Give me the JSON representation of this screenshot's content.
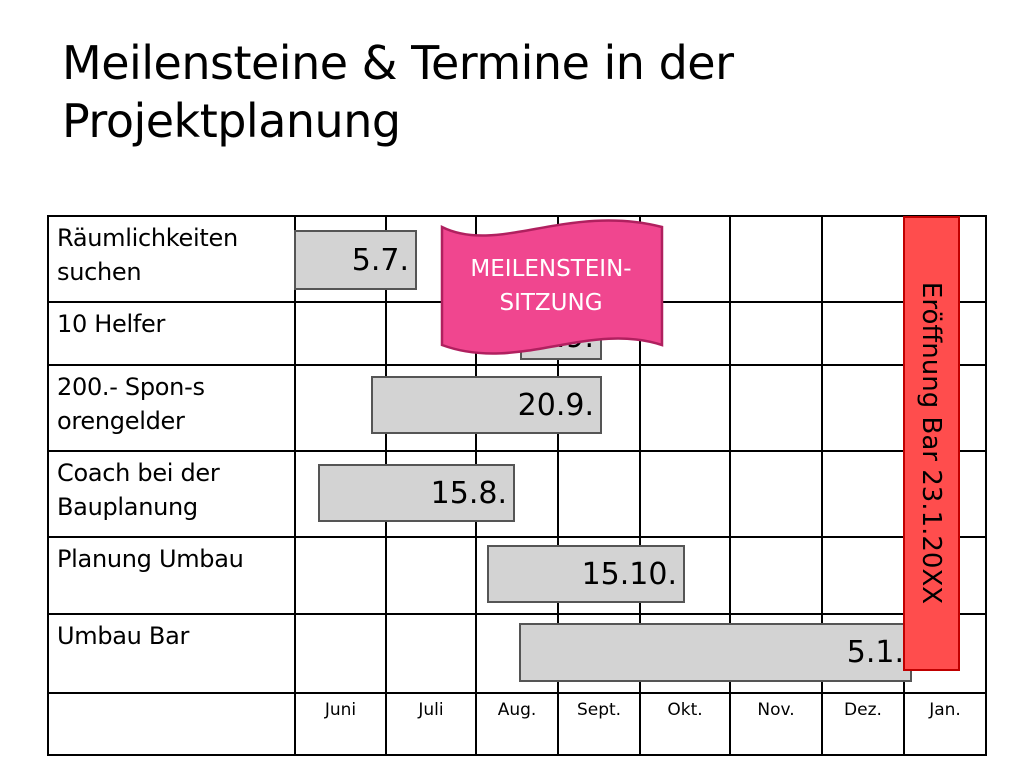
{
  "title": "Meilensteine & Termine in der Projektplanung",
  "tasks": [
    {
      "label": "Räumlichkeiten suchen",
      "deadline": "5.7."
    },
    {
      "label": "10 Helfer",
      "deadline": ".9."
    },
    {
      "label": "200.- Spon-sorengelder",
      "deadline": "20.9."
    },
    {
      "label": "Coach bei der Bauplanung",
      "deadline": "15.8."
    },
    {
      "label": "Planung Umbau",
      "deadline": "15.10."
    },
    {
      "label": "Umbau Bar",
      "deadline": "5.1."
    }
  ],
  "months": [
    "Juni",
    "Juli",
    "Aug.",
    "Sept.",
    "Okt.",
    "Nov.",
    "Dez.",
    "Jan."
  ],
  "milestone_banner": {
    "line1": "MEILENSTEIN-",
    "line2": "SITZUNG",
    "color": "#f0468f"
  },
  "opening": {
    "label": "Eröffnung Bar 23.1.20XX",
    "color": "#ff4d4d"
  },
  "bar_color": "#d3d3d3"
}
